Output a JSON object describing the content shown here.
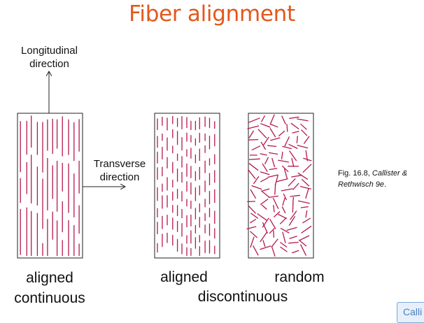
{
  "slide": {
    "title": "Fiber alignment",
    "longitudinal": [
      "Longitudinal",
      "direction"
    ],
    "transverse": [
      "Transverse",
      "direction"
    ],
    "panel_labels": {
      "aligned_continuous": [
        "aligned",
        "continuous"
      ],
      "aligned": "aligned",
      "random": "random",
      "discontinuous": "discontinuous"
    },
    "caption": {
      "line1_prefix": "Fig. 16.8, ",
      "line1_italic": "Callister &",
      "line2_italic": "Rethwisch 9e",
      "line2_suffix": "."
    },
    "corner_button": "Calli"
  },
  "colors": {
    "title": "#e2581c",
    "fiber": "#b5184f",
    "outline": "#222222"
  }
}
